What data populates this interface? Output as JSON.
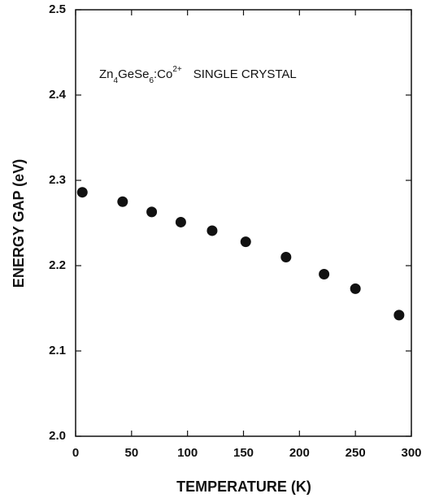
{
  "chart_data": {
    "type": "scatter",
    "annotation_parts": [
      "Zn",
      "4",
      "GeSe",
      "6",
      ":Co",
      "2+",
      "SINGLE CRYSTAL"
    ],
    "xlabel": "TEMPERATURE   (K)",
    "ylabel": "ENERGY GAP  (eV)",
    "x": [
      6,
      42,
      68,
      94,
      122,
      152,
      188,
      222,
      250,
      289
    ],
    "values": [
      2.286,
      2.275,
      2.263,
      2.251,
      2.241,
      2.228,
      2.21,
      2.19,
      2.173,
      2.142
    ],
    "color": "#111111",
    "xlim": [
      0,
      300
    ],
    "xticks": [
      0,
      50,
      100,
      150,
      200,
      250,
      300
    ],
    "ylim": [
      2.0,
      2.5
    ],
    "yticks": [
      {
        "value": 2.0,
        "label": "2.0"
      },
      2.1,
      2.2,
      2.3,
      2.4,
      2.5
    ]
  }
}
